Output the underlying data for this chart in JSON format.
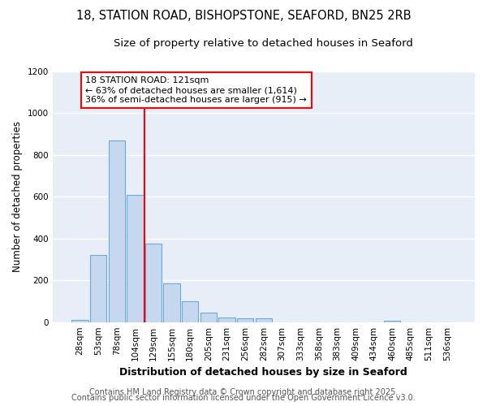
{
  "title1": "18, STATION ROAD, BISHOPSTONE, SEAFORD, BN25 2RB",
  "title2": "Size of property relative to detached houses in Seaford",
  "xlabel": "Distribution of detached houses by size in Seaford",
  "ylabel": "Number of detached properties",
  "categories": [
    "28sqm",
    "53sqm",
    "78sqm",
    "104sqm",
    "129sqm",
    "155sqm",
    "180sqm",
    "205sqm",
    "231sqm",
    "256sqm",
    "282sqm",
    "307sqm",
    "333sqm",
    "358sqm",
    "383sqm",
    "409sqm",
    "434sqm",
    "460sqm",
    "485sqm",
    "511sqm",
    "536sqm"
  ],
  "values": [
    12,
    320,
    870,
    608,
    375,
    185,
    100,
    45,
    22,
    18,
    18,
    0,
    0,
    0,
    0,
    0,
    0,
    8,
    0,
    0,
    0
  ],
  "bar_color": "#c5d8f0",
  "bar_edge_color": "#6aaad4",
  "red_line_index": 4,
  "annotation_text": "18 STATION ROAD: 121sqm\n← 63% of detached houses are smaller (1,614)\n36% of semi-detached houses are larger (915) →",
  "annotation_box_color": "white",
  "annotation_box_edge": "red",
  "ylim": [
    0,
    1200
  ],
  "yticks": [
    0,
    200,
    400,
    600,
    800,
    1000,
    1200
  ],
  "footer1": "Contains HM Land Registry data © Crown copyright and database right 2025.",
  "footer2": "Contains public sector information licensed under the Open Government Licence v3.0.",
  "figure_bg": "#ffffff",
  "axes_bg": "#e8eef8",
  "grid_color": "#ffffff",
  "title_fontsize": 10.5,
  "subtitle_fontsize": 9.5,
  "xlabel_fontsize": 9,
  "ylabel_fontsize": 8.5,
  "tick_fontsize": 7.5,
  "footer_fontsize": 7,
  "annot_fontsize": 8
}
